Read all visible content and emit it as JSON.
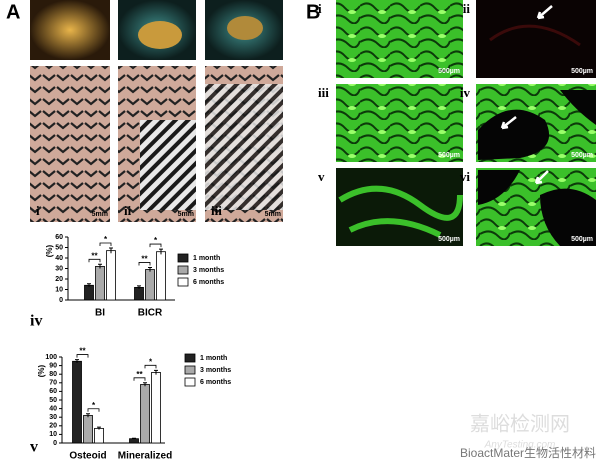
{
  "figure": {
    "panel_a": {
      "label": "A",
      "images": [
        {
          "label": "i",
          "scale": "5mm"
        },
        {
          "label": "ii",
          "scale": "5mm"
        },
        {
          "label": "iii",
          "scale": "5mm"
        }
      ]
    },
    "panel_b": {
      "label": "B",
      "images": [
        {
          "label": "i",
          "scale": "500µm"
        },
        {
          "label": "ii",
          "scale": "500µm"
        },
        {
          "label": "iii",
          "scale": "500µm"
        },
        {
          "label": "iv",
          "scale": "500µm"
        },
        {
          "label": "v",
          "scale": "500µm"
        },
        {
          "label": "vi",
          "scale": "500µm"
        }
      ]
    },
    "watermark": "嘉峪检测网",
    "watermark_url": "AnyTesting.com",
    "source": "BioactMater生物活性材料"
  },
  "chart_data": [
    {
      "type": "bar",
      "panel_label": "iv",
      "y_label": "(%)",
      "categories": [
        "BI",
        "BICR"
      ],
      "series": [
        {
          "name": "1 month",
          "color": "#222222",
          "values": [
            14,
            12
          ],
          "errors": [
            1.5,
            1.5
          ]
        },
        {
          "name": "3 months",
          "color": "#aaaaaa",
          "values": [
            32,
            29
          ],
          "errors": [
            2,
            2
          ]
        },
        {
          "name": "6 months",
          "color": "#ffffff",
          "values": [
            47,
            46
          ],
          "errors": [
            2.5,
            2.5
          ]
        }
      ],
      "annotations": [
        "**",
        "*",
        "**",
        "*"
      ],
      "ylim": [
        0,
        60
      ],
      "yticks": [
        0,
        10,
        20,
        30,
        40,
        50,
        60
      ]
    },
    {
      "type": "bar",
      "panel_label": "v",
      "y_label": "(%)",
      "categories": [
        "Osteoid",
        "Mineralized"
      ],
      "series": [
        {
          "name": "1 month",
          "color": "#222222",
          "values": [
            95,
            5
          ],
          "errors": [
            2,
            0.5
          ]
        },
        {
          "name": "3 months",
          "color": "#aaaaaa",
          "values": [
            32,
            68
          ],
          "errors": [
            2,
            2
          ]
        },
        {
          "name": "6 months",
          "color": "#ffffff",
          "values": [
            17,
            82
          ],
          "errors": [
            1.5,
            2.5
          ]
        }
      ],
      "annotations": [
        "**",
        "*",
        "**",
        "*"
      ],
      "ylim": [
        0,
        100
      ],
      "yticks": [
        0,
        10,
        20,
        30,
        40,
        50,
        60,
        70,
        80,
        90,
        100
      ]
    }
  ]
}
